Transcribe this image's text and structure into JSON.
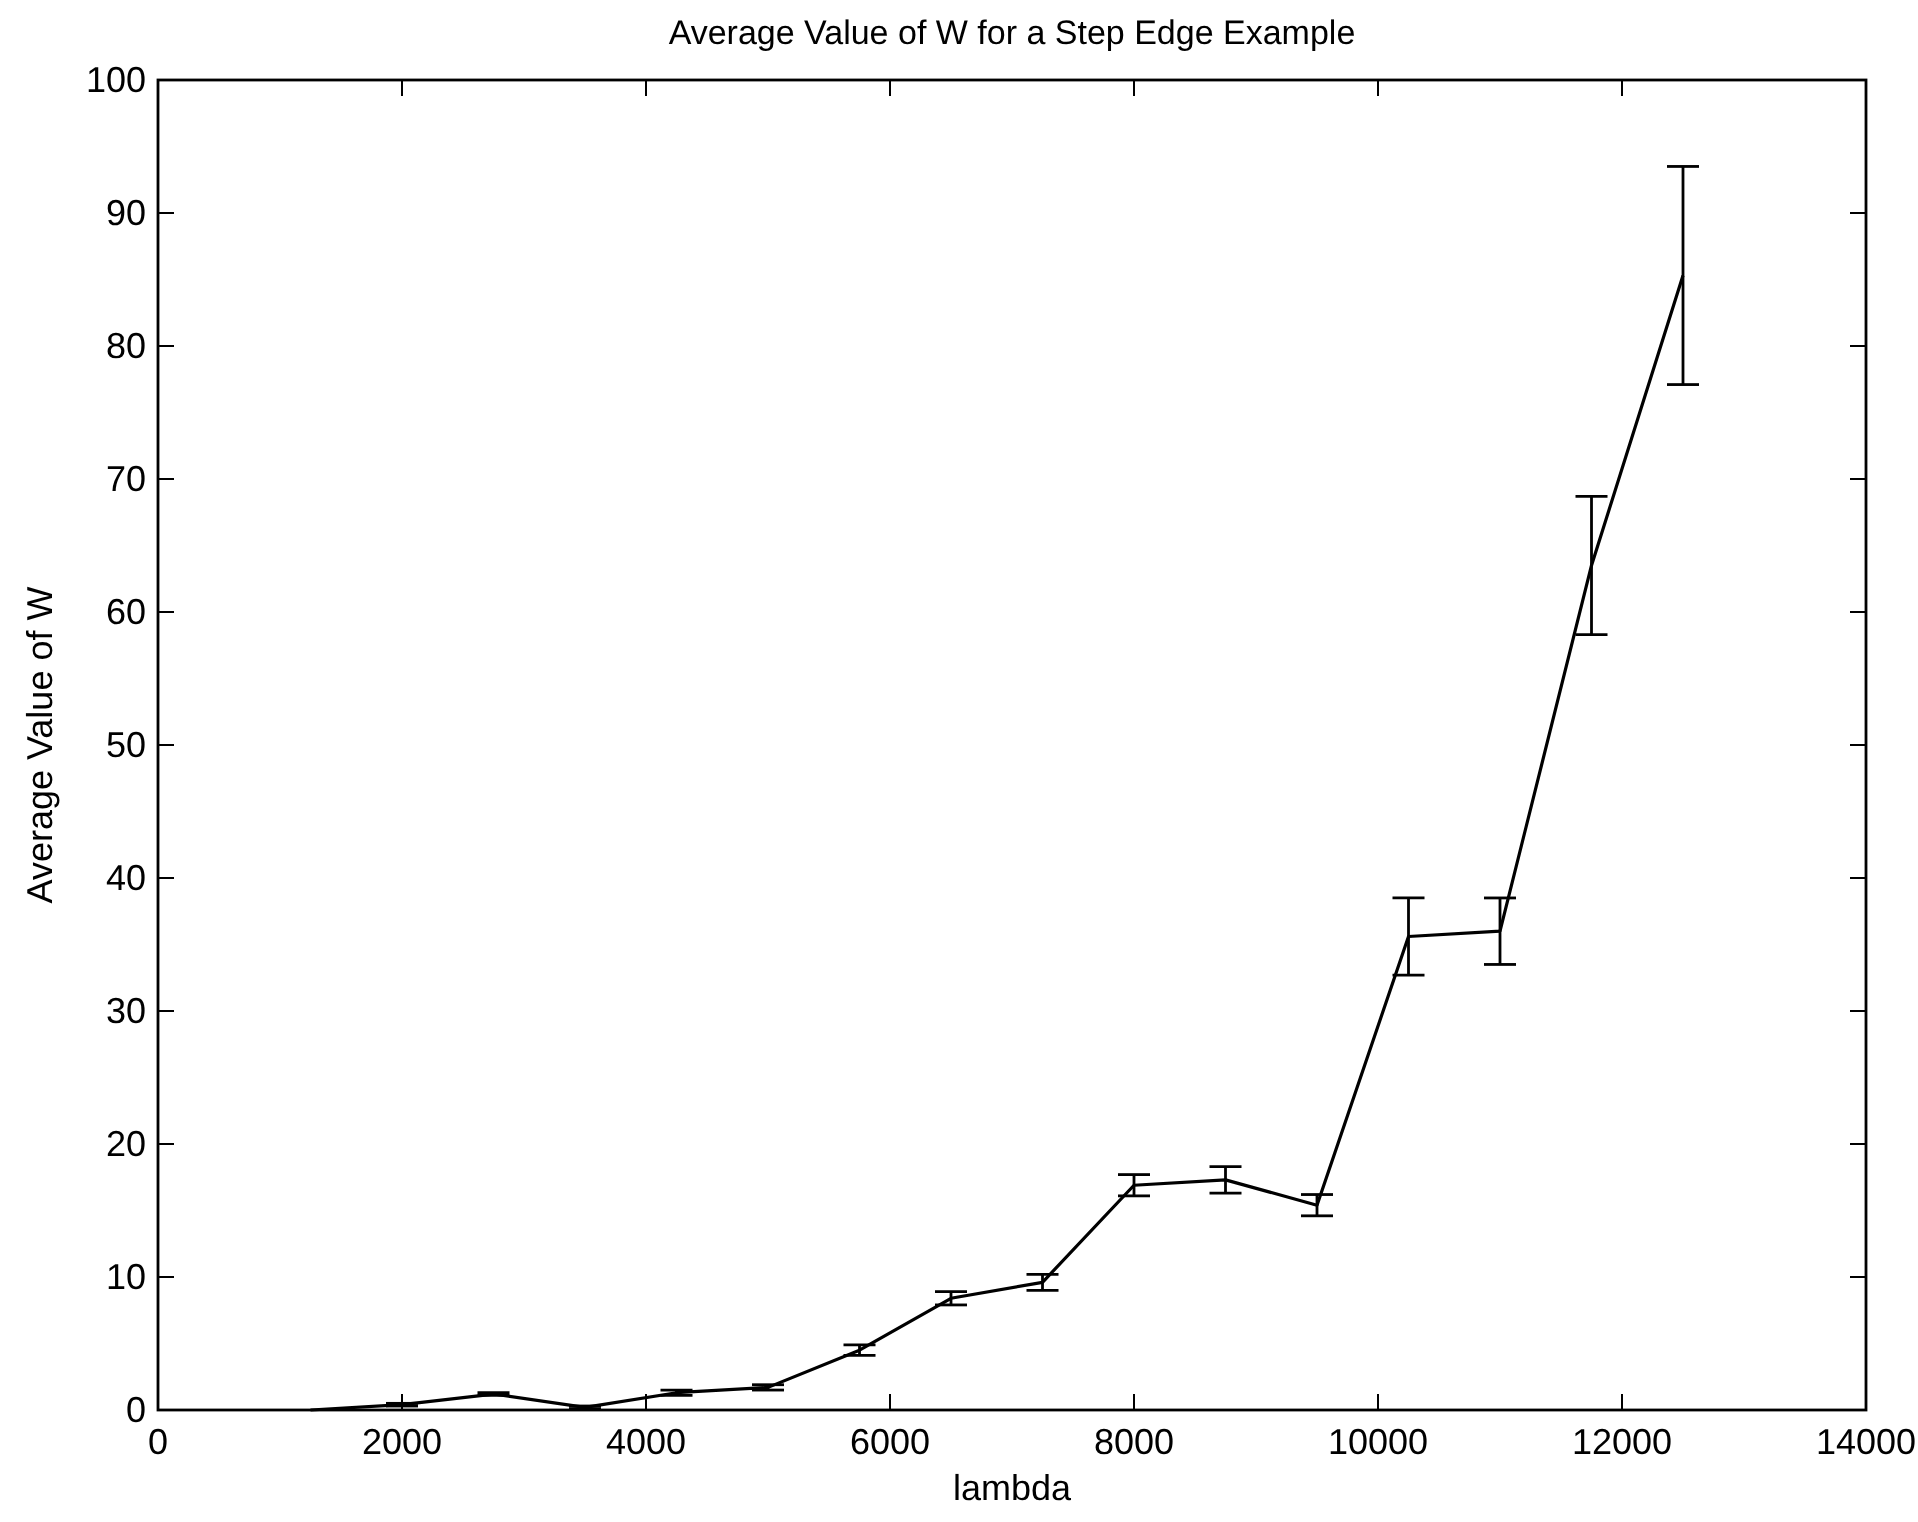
{
  "chart_data": {
    "type": "line",
    "title": "Average Value of W for a Step Edge Example",
    "xlabel": "lambda",
    "ylabel": "Average Value of W",
    "x": [
      1250,
      2000,
      2750,
      3500,
      4250,
      5000,
      5750,
      6500,
      7250,
      8000,
      8750,
      9500,
      10250,
      11000,
      11750,
      12500
    ],
    "series": [
      {
        "color": "#000000",
        "values": [
          0,
          0.4,
          1.2,
          0.2,
          1.3,
          1.7,
          4.5,
          8.4,
          9.6,
          16.9,
          17.3,
          15.4,
          35.6,
          36.0,
          63.5,
          85.3
        ],
        "errors": [
          null,
          0.1,
          0.1,
          0.1,
          0.2,
          0.2,
          0.4,
          0.5,
          0.6,
          0.8,
          1.0,
          0.8,
          2.9,
          2.5,
          5.2,
          8.2
        ]
      }
    ],
    "xlim": [
      0,
      14000
    ],
    "xticks": [
      0,
      2000,
      4000,
      6000,
      8000,
      10000,
      12000,
      14000
    ],
    "ylim": [
      0,
      100
    ],
    "yticks": [
      0,
      10,
      20,
      30,
      40,
      50,
      60,
      70,
      80,
      90,
      100
    ],
    "grid": false,
    "marker": "none",
    "line_style": "solid"
  }
}
